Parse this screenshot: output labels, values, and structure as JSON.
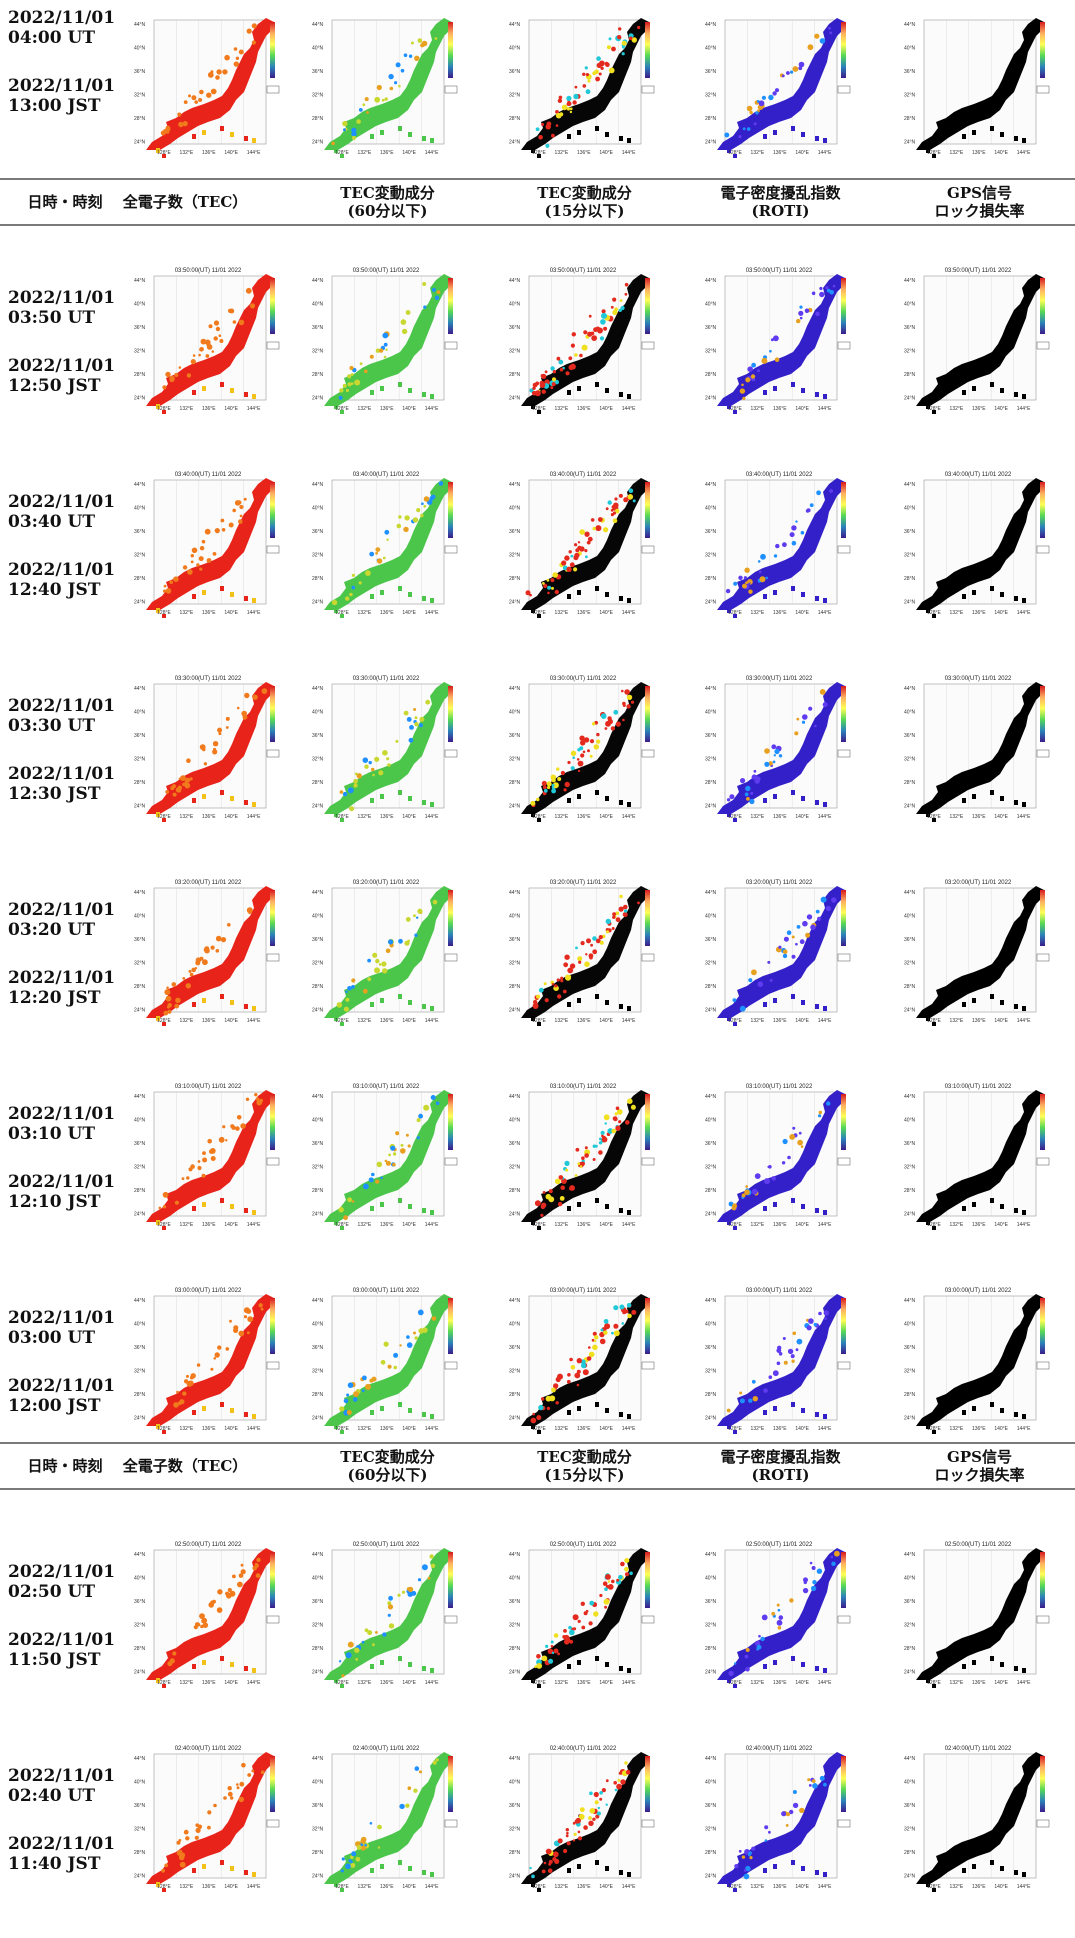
{
  "colors": {
    "tec": "#e8231a",
    "tec_accent": "#f07a1c",
    "tec60": "#4bc64b",
    "tec60_accent": "#c8d830",
    "tec15_land": "#060606",
    "tec15_accent": "#e42a1f",
    "roti": "#3420c8",
    "roti_accent": "#5f3cf0",
    "lock": "#000000"
  },
  "header": {
    "datetime": "日時・時刻",
    "tec": "全電子数（TEC）",
    "tec60_line1": "TEC変動成分",
    "tec60_line2": "(60分以下)",
    "tec15_line1": "TEC変動成分",
    "tec15_line2": "(15分以下)",
    "roti_line1": "電子密度擾乱指数",
    "roti_line2": "(ROTI)",
    "lock_line1": "GPS信号",
    "lock_line2": "ロック損失率"
  },
  "map_labels": {
    "lat": [
      "44°N",
      "40°N",
      "36°N",
      "32°N",
      "28°N",
      "24°N"
    ],
    "lon": [
      "128°E",
      "132°E",
      "136°E",
      "140°E",
      "144°E"
    ]
  },
  "rows": [
    {
      "ut": "2022/11/01\n04:00 UT",
      "ut_a": "2022/11/01",
      "ut_b": "04:00 UT",
      "jst_a": "2022/11/01",
      "jst_b": "13:00 JST",
      "map_title": ""
    },
    {
      "ut_a": "2022/11/01",
      "ut_b": "03:50 UT",
      "jst_a": "2022/11/01",
      "jst_b": "12:50 JST",
      "map_title": "03:50:00(UT) 11/01 2022"
    },
    {
      "ut_a": "2022/11/01",
      "ut_b": "03:40 UT",
      "jst_a": "2022/11/01",
      "jst_b": "12:40 JST",
      "map_title": "03:40:00(UT) 11/01 2022"
    },
    {
      "ut_a": "2022/11/01",
      "ut_b": "03:30 UT",
      "jst_a": "2022/11/01",
      "jst_b": "12:30 JST",
      "map_title": "03:30:00(UT) 11/01 2022"
    },
    {
      "ut_a": "2022/11/01",
      "ut_b": "03:20 UT",
      "jst_a": "2022/11/01",
      "jst_b": "12:20 JST",
      "map_title": "03:20:00(UT) 11/01 2022"
    },
    {
      "ut_a": "2022/11/01",
      "ut_b": "03:10 UT",
      "jst_a": "2022/11/01",
      "jst_b": "12:10 JST",
      "map_title": "03:10:00(UT) 11/01 2022"
    },
    {
      "ut_a": "2022/11/01",
      "ut_b": "03:00 UT",
      "jst_a": "2022/11/01",
      "jst_b": "12:00 JST",
      "map_title": "03:00:00(UT) 11/01 2022"
    },
    {
      "ut_a": "2022/11/01",
      "ut_b": "02:50 UT",
      "jst_a": "2022/11/01",
      "jst_b": "11:50 JST",
      "map_title": "02:50:00(UT) 11/01 2022"
    },
    {
      "ut_a": "2022/11/01",
      "ut_b": "02:40 UT",
      "jst_a": "2022/11/01",
      "jst_b": "11:40 JST",
      "map_title": "02:40:00(UT) 11/01 2022"
    }
  ]
}
